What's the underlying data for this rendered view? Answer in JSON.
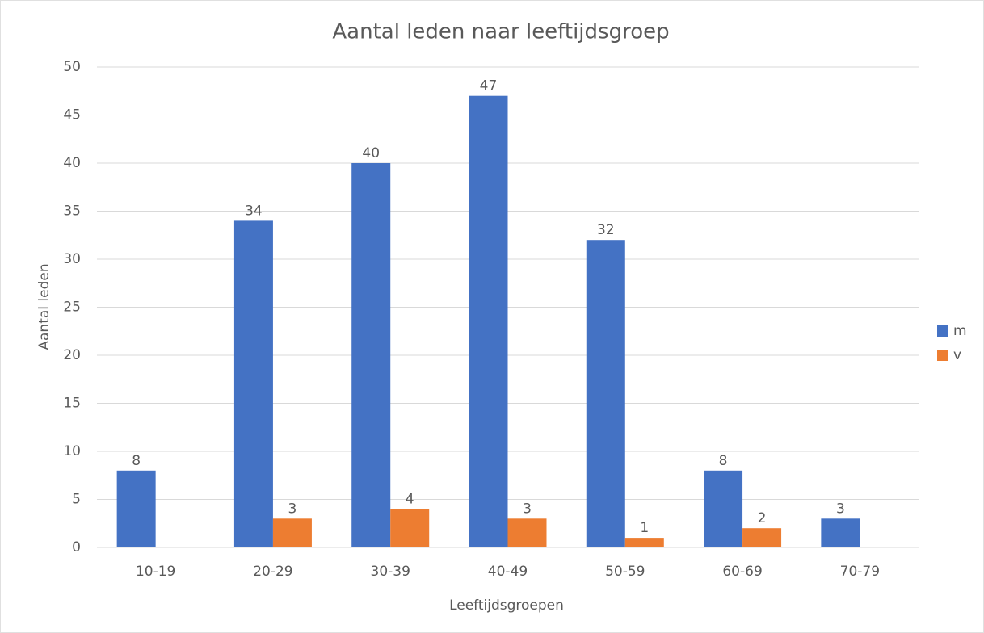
{
  "chart_data": {
    "type": "bar",
    "title": "Aantal leden naar leeftijdsgroep",
    "x_label": "Leeftijdsgroepen",
    "y_label": "Aantal leden",
    "categories": [
      "10-19",
      "20-29",
      "30-39",
      "40-49",
      "50-59",
      "60-69",
      "70-79"
    ],
    "series": [
      {
        "name": "m",
        "color": "#4472c4",
        "values": [
          8,
          34,
          40,
          47,
          32,
          8,
          3
        ]
      },
      {
        "name": "v",
        "color": "#ed7d31",
        "values": [
          null,
          3,
          4,
          3,
          1,
          2,
          null
        ]
      }
    ],
    "ylim": [
      0,
      50
    ],
    "yticks": [
      0,
      5,
      10,
      15,
      20,
      25,
      30,
      35,
      40,
      45,
      50
    ],
    "grid": true,
    "legend": "right"
  }
}
